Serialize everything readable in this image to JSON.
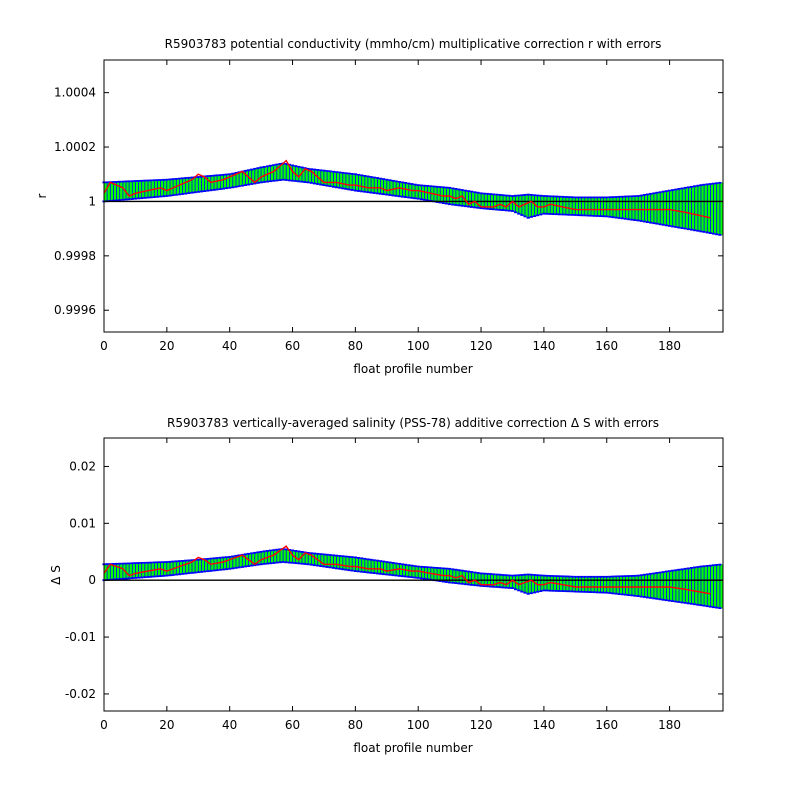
{
  "chart_data": [
    {
      "type": "line",
      "title": "R5903783 potential conductivity (mmho/cm) multiplicative correction r with errors",
      "xlabel": "float profile number",
      "ylabel": "r",
      "xlim": [
        0,
        197
      ],
      "ylim": [
        0.99952,
        1.00052
      ],
      "x_ticks": [
        0,
        20,
        40,
        60,
        80,
        100,
        120,
        140,
        160,
        180
      ],
      "y_ticks": [
        0.9996,
        0.9998,
        1,
        1.0002,
        1.0004
      ],
      "y_tick_labels": [
        "0.9996",
        "0.9998",
        "1",
        "1.0002",
        "1.0004"
      ],
      "reference_line": 1,
      "colors": {
        "fill": "#00ff00",
        "bounds": "#0000ff",
        "series": "#ff0000",
        "reference": "#000000"
      },
      "series": [
        {
          "role": "upper error bound",
          "x": [
            0,
            10,
            20,
            30,
            40,
            50,
            57,
            65,
            80,
            100,
            110,
            120,
            130,
            135,
            140,
            150,
            160,
            170,
            180,
            190,
            197
          ],
          "values": [
            1.00007,
            1.000075,
            1.00008,
            1.00009,
            1.0001,
            1.000125,
            1.00014,
            1.00012,
            1.0001,
            1.00006,
            1.00005,
            1.00003,
            1.00002,
            1.000025,
            1.00002,
            1.000015,
            1.000015,
            1.00002,
            1.00004,
            1.00006,
            1.00007
          ]
        },
        {
          "role": "lower error bound",
          "x": [
            0,
            10,
            20,
            30,
            40,
            50,
            57,
            65,
            80,
            100,
            110,
            120,
            130,
            135,
            140,
            150,
            160,
            170,
            180,
            190,
            197
          ],
          "values": [
            1.0,
            1.00001,
            1.00002,
            1.000035,
            1.00005,
            1.00007,
            1.00008,
            1.00007,
            1.00004,
            1.00001,
            0.99999,
            0.999975,
            0.999965,
            0.99994,
            0.999955,
            0.99995,
            0.999945,
            0.99993,
            0.99991,
            0.99989,
            0.999875
          ]
        },
        {
          "role": "correction",
          "x": [
            0,
            2,
            4,
            6,
            8,
            10,
            14,
            18,
            20,
            24,
            28,
            30,
            32,
            34,
            38,
            42,
            44,
            46,
            48,
            50,
            52,
            54,
            56,
            58,
            60,
            62,
            64,
            66,
            70,
            74,
            78,
            80,
            84,
            88,
            90,
            94,
            98,
            100,
            104,
            108,
            110,
            112,
            114,
            116,
            118,
            120,
            124,
            126,
            128,
            130,
            132,
            134,
            136,
            138,
            140,
            142,
            146,
            150,
            160,
            170,
            180,
            185,
            193
          ],
          "values": [
            1.00003,
            1.00007,
            1.00006,
            1.00005,
            1.00002,
            1.00003,
            1.00004,
            1.00005,
            1.00004,
            1.00006,
            1.00008,
            1.0001,
            1.00009,
            1.00007,
            1.00008,
            1.0001,
            1.00011,
            1.00009,
            1.00007,
            1.00009,
            1.0001,
            1.00011,
            1.00013,
            1.00015,
            1.00011,
            1.00009,
            1.00012,
            1.00011,
            1.00007,
            1.00007,
            1.00006,
            1.00006,
            1.00005,
            1.00005,
            1.00004,
            1.00005,
            1.00004,
            1.00004,
            1.00003,
            1.00002,
            1.00002,
            1.00001,
            1.00002,
            0.99999,
            1.0,
            0.99998,
            0.99998,
            0.99999,
            0.99998,
            1.0,
            0.99998,
            0.99999,
            1.0,
            0.99998,
            0.99998,
            0.99999,
            0.99998,
            0.99997,
            0.99997,
            0.99997,
            0.99997,
            0.99996,
            0.99994
          ]
        }
      ]
    },
    {
      "type": "line",
      "title": "R5903783 vertically-averaged salinity (PSS-78) additive correction Δ S with errors",
      "xlabel": "float profile number",
      "ylabel": "Δ S",
      "xlim": [
        0,
        197
      ],
      "ylim": [
        -0.023,
        0.025
      ],
      "x_ticks": [
        0,
        20,
        40,
        60,
        80,
        100,
        120,
        140,
        160,
        180
      ],
      "y_ticks": [
        -0.02,
        -0.01,
        0,
        0.01,
        0.02
      ],
      "y_tick_labels": [
        "-0.02",
        "-0.01",
        "0",
        "0.01",
        "0.02"
      ],
      "reference_line": 0,
      "colors": {
        "fill": "#00ff00",
        "bounds": "#0000ff",
        "series": "#ff0000",
        "reference": "#000000"
      },
      "series": [
        {
          "role": "upper error bound",
          "x": [
            0,
            10,
            20,
            30,
            40,
            50,
            57,
            65,
            80,
            100,
            110,
            120,
            130,
            135,
            140,
            150,
            160,
            170,
            180,
            190,
            197
          ],
          "values": [
            0.0028,
            0.003,
            0.0032,
            0.0036,
            0.0041,
            0.005,
            0.0055,
            0.0048,
            0.004,
            0.0024,
            0.002,
            0.0012,
            0.0008,
            0.001,
            0.0008,
            0.0006,
            0.0006,
            0.0008,
            0.0016,
            0.0024,
            0.0028
          ]
        },
        {
          "role": "lower error bound",
          "x": [
            0,
            10,
            20,
            30,
            40,
            50,
            57,
            65,
            80,
            100,
            110,
            120,
            130,
            135,
            140,
            150,
            160,
            170,
            180,
            190,
            197
          ],
          "values": [
            0.0,
            0.0004,
            0.0008,
            0.0014,
            0.002,
            0.0028,
            0.0032,
            0.0028,
            0.0016,
            0.0004,
            -0.0004,
            -0.001,
            -0.0014,
            -0.0024,
            -0.0018,
            -0.002,
            -0.0022,
            -0.0028,
            -0.0036,
            -0.0044,
            -0.005
          ]
        },
        {
          "role": "correction",
          "x": [
            0,
            2,
            4,
            6,
            8,
            10,
            14,
            18,
            20,
            24,
            28,
            30,
            32,
            34,
            38,
            42,
            44,
            46,
            48,
            50,
            52,
            54,
            56,
            58,
            60,
            62,
            64,
            66,
            70,
            74,
            78,
            80,
            84,
            88,
            90,
            94,
            98,
            100,
            104,
            108,
            110,
            112,
            114,
            116,
            118,
            120,
            124,
            126,
            128,
            130,
            132,
            134,
            136,
            138,
            140,
            142,
            146,
            150,
            160,
            170,
            180,
            185,
            193
          ],
          "values": [
            0.0012,
            0.0028,
            0.0024,
            0.002,
            0.0008,
            0.0012,
            0.0016,
            0.002,
            0.0016,
            0.0024,
            0.0032,
            0.004,
            0.0036,
            0.0028,
            0.0032,
            0.004,
            0.0044,
            0.0036,
            0.0028,
            0.0036,
            0.004,
            0.0044,
            0.0052,
            0.006,
            0.0044,
            0.0036,
            0.0048,
            0.0044,
            0.0028,
            0.0028,
            0.0024,
            0.0024,
            0.002,
            0.002,
            0.0016,
            0.002,
            0.0016,
            0.0016,
            0.0012,
            0.0008,
            0.0008,
            0.0004,
            0.0008,
            -0.0004,
            0.0,
            -0.0008,
            -0.0008,
            -0.0004,
            -0.0008,
            0.0,
            -0.0008,
            -0.0004,
            0.0,
            -0.0008,
            -0.0008,
            -0.0004,
            -0.0008,
            -0.0012,
            -0.0012,
            -0.0012,
            -0.0012,
            -0.0016,
            -0.0024
          ]
        }
      ]
    }
  ]
}
